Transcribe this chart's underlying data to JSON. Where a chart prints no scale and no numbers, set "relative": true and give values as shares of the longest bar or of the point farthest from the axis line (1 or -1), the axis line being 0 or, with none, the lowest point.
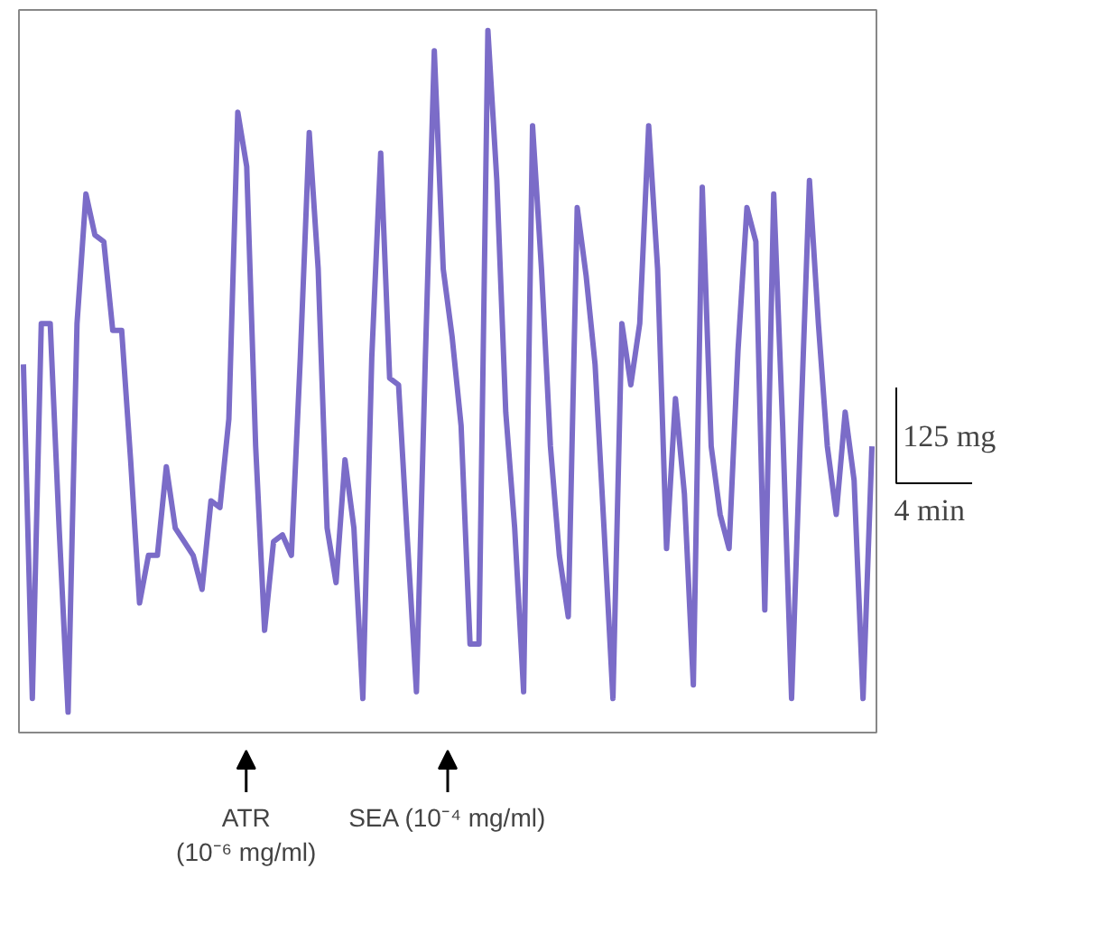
{
  "chart_data": {
    "type": "line",
    "relative": true,
    "tick_labels": false,
    "categories": [
      null,
      null,
      null,
      null,
      null,
      null,
      null,
      null,
      null,
      null,
      null,
      null,
      null,
      null,
      null,
      null,
      null,
      null,
      null,
      null,
      null,
      null,
      null,
      null,
      null,
      null,
      null,
      null,
      null,
      null,
      null,
      null,
      null,
      null,
      null,
      null,
      null,
      null,
      null,
      null,
      null,
      null,
      null,
      null,
      null,
      null,
      null,
      null,
      null,
      null,
      null,
      null,
      null,
      null,
      null,
      null,
      null,
      null,
      null,
      null,
      null,
      null,
      null,
      null,
      null,
      null,
      null,
      null,
      null,
      null,
      null,
      null,
      null,
      null,
      null,
      null,
      null,
      null,
      null,
      null,
      null,
      null,
      null,
      null,
      null,
      null,
      null,
      null,
      null,
      null,
      null,
      null,
      null,
      null,
      null,
      null
    ],
    "series": [
      {
        "color": "#7b6cc8",
        "values": [
          0.51,
          0.02,
          0.57,
          0.57,
          0.27,
          0.0,
          0.57,
          0.76,
          0.7,
          0.69,
          0.56,
          0.56,
          0.37,
          0.16,
          0.23,
          0.23,
          0.36,
          0.27,
          0.25,
          0.23,
          0.18,
          0.31,
          0.3,
          0.43,
          0.88,
          0.8,
          0.39,
          0.12,
          0.25,
          0.26,
          0.23,
          0.52,
          0.85,
          0.65,
          0.27,
          0.19,
          0.37,
          0.27,
          0.02,
          0.52,
          0.82,
          0.49,
          0.48,
          0.25,
          0.03,
          0.52,
          0.97,
          0.65,
          0.55,
          0.42,
          0.1,
          0.1,
          1.0,
          0.78,
          0.44,
          0.27,
          0.03,
          0.86,
          0.65,
          0.39,
          0.23,
          0.14,
          0.74,
          0.64,
          0.51,
          0.27,
          0.02,
          0.57,
          0.48,
          0.57,
          0.86,
          0.65,
          0.24,
          0.46,
          0.32,
          0.04,
          0.77,
          0.39,
          0.29,
          0.24,
          0.53,
          0.74,
          0.69,
          0.15,
          0.76,
          0.42,
          0.02,
          0.41,
          0.78,
          0.57,
          0.39,
          0.29,
          0.44,
          0.34,
          0.02,
          0.39
        ]
      }
    ],
    "annotations": [
      "ATR\n(10⁻⁶ mg/ml)",
      "SEA (10⁻⁴ mg/ml)",
      "125 mg",
      "4 min"
    ]
  }
}
